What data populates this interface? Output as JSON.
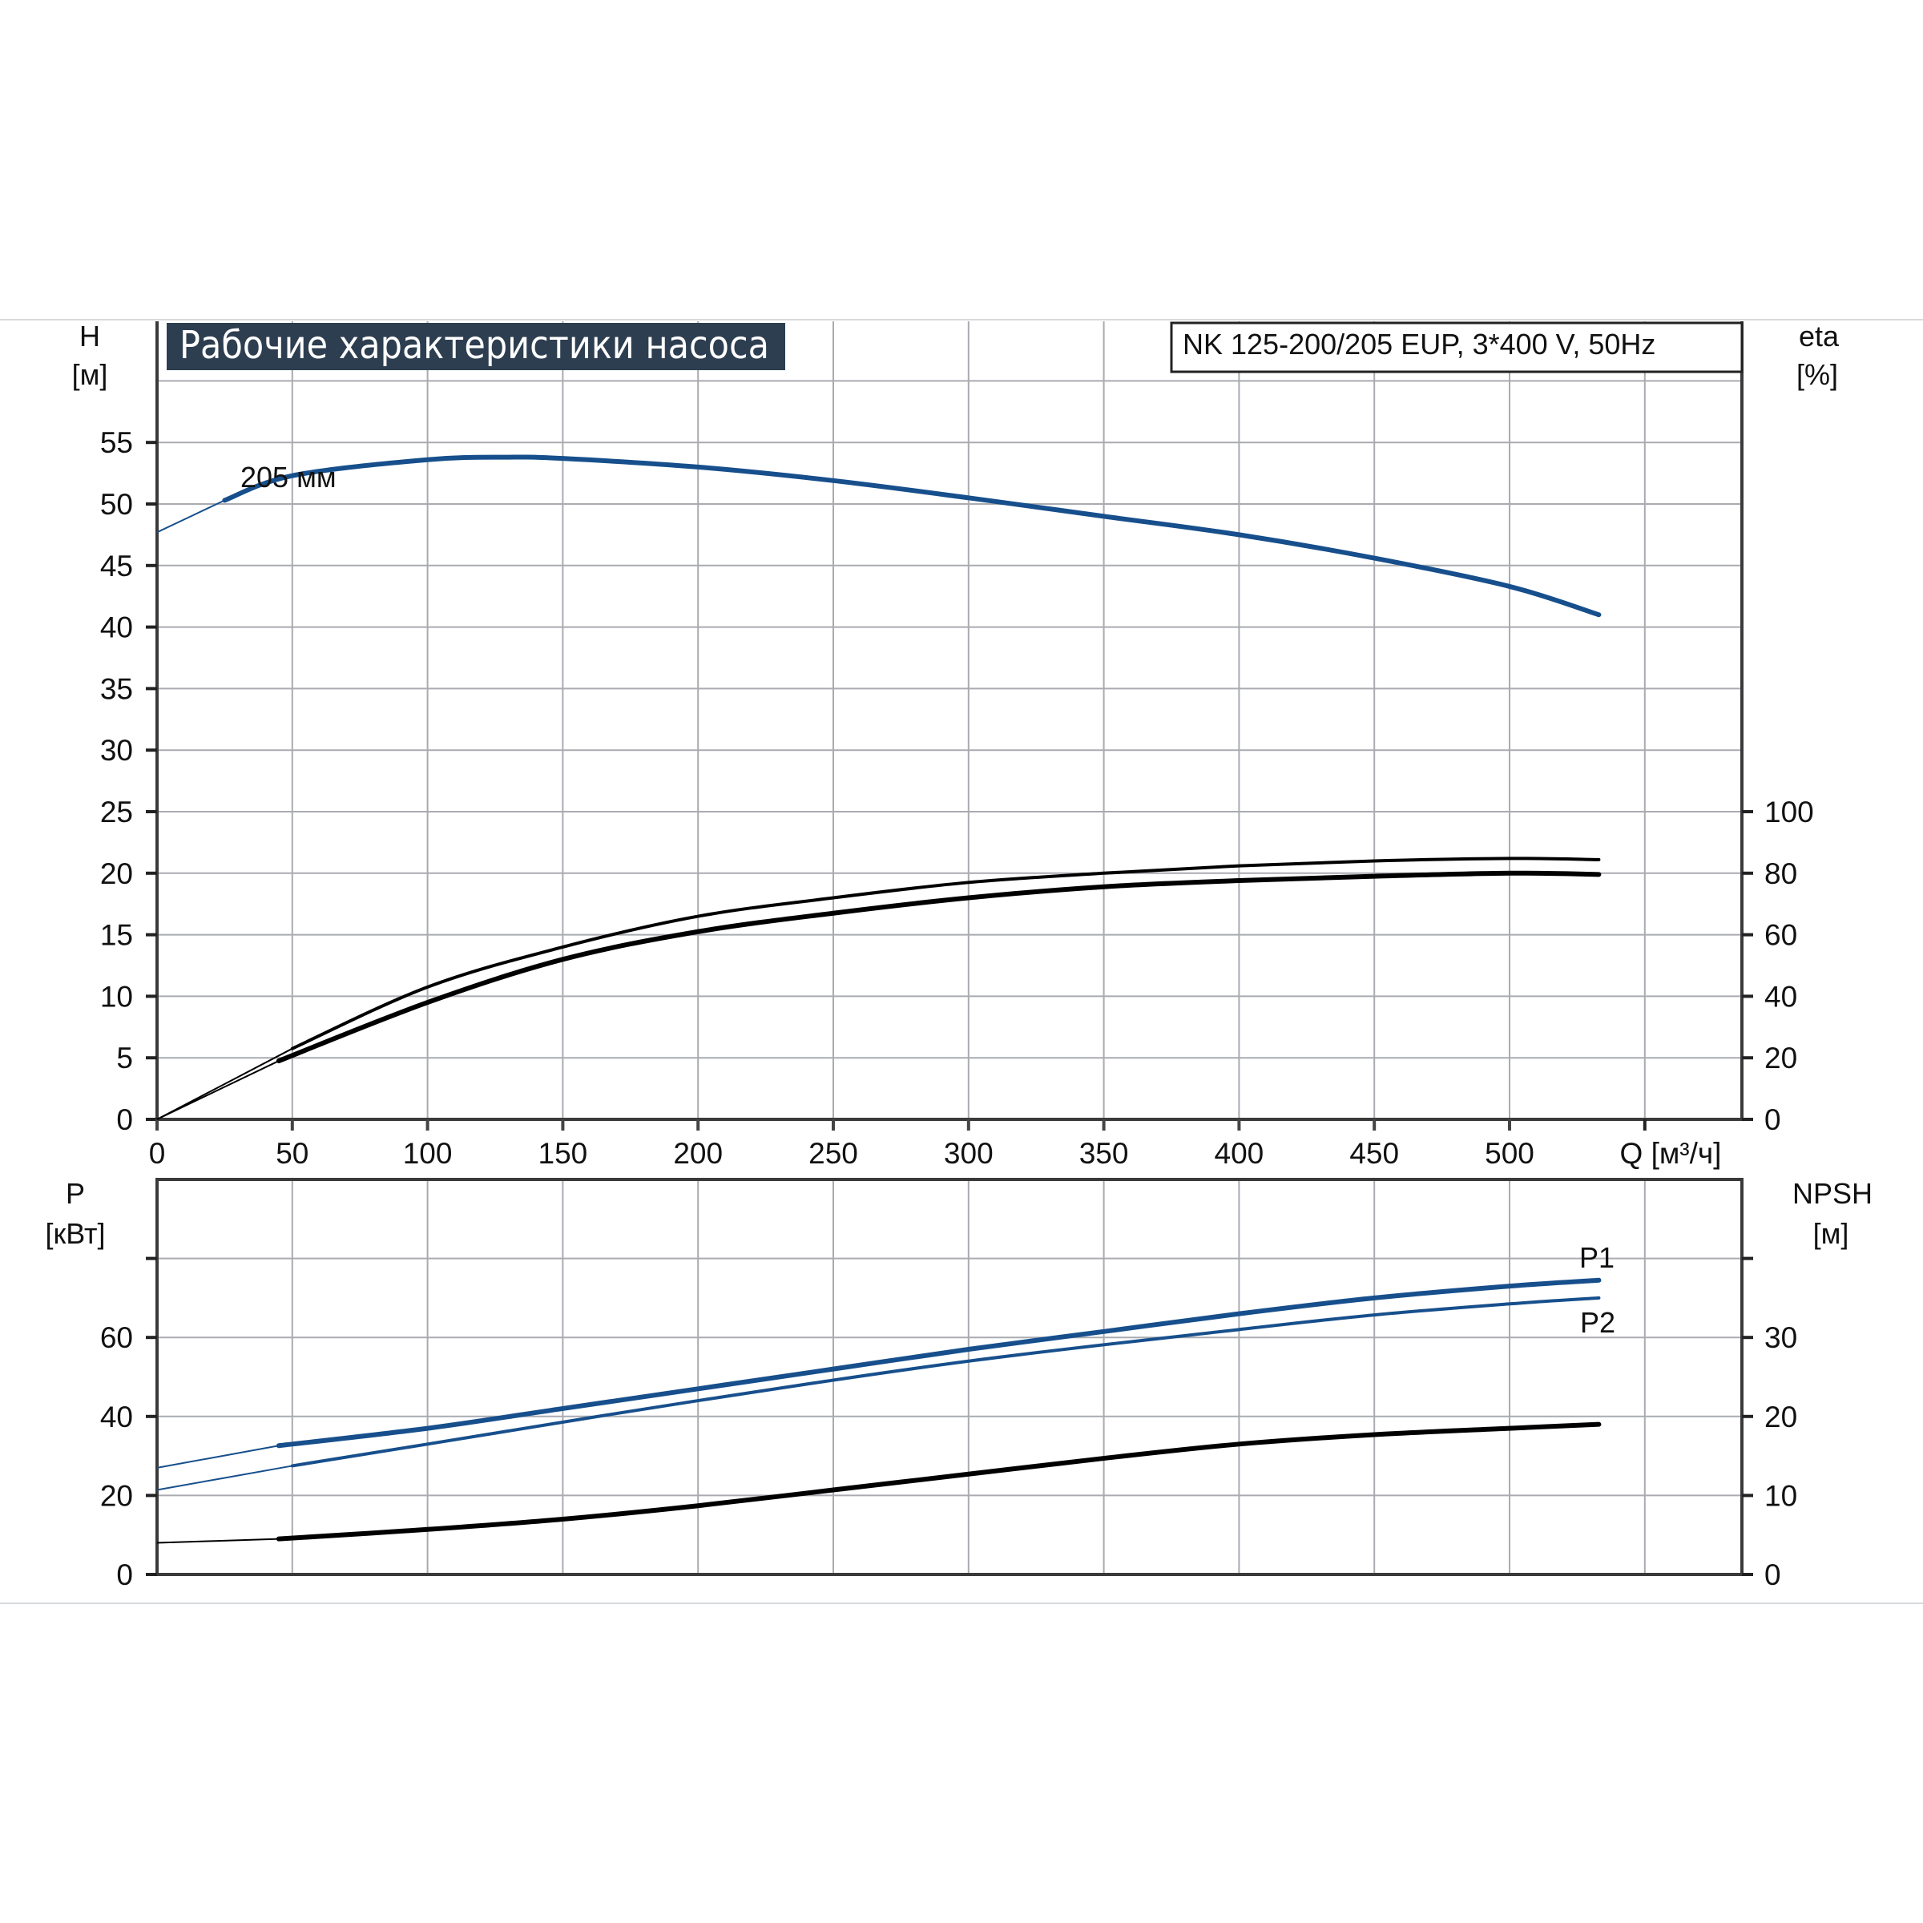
{
  "title": "Рабочие характеристики насоса",
  "model": "NK 125-200/205 EUP, 3*400 V, 50Hz",
  "colors": {
    "blue": "#174f8c",
    "black": "#000000",
    "title_bg": "#2d3e50",
    "grid": "#a9abb0"
  },
  "chart_data": [
    {
      "type": "line",
      "xlabel": "Q [м³/ч]",
      "ylabel": "H",
      "ylabel_unit": "[м]",
      "y2label": "eta",
      "y2label_unit": "[%]",
      "xlim": [
        0,
        585
      ],
      "ylim": [
        0,
        60
      ],
      "y2lim": [
        0,
        100
      ],
      "x_ticks": [
        "0",
        "50",
        "100",
        "150",
        "200",
        "250",
        "300",
        "350",
        "400",
        "450",
        "500"
      ],
      "y_ticks": [
        "0",
        "5",
        "10",
        "15",
        "20",
        "25",
        "30",
        "35",
        "40",
        "45",
        "50",
        "55"
      ],
      "y2_ticks": [
        "0",
        "20",
        "40",
        "60",
        "80",
        "100"
      ],
      "grid": true,
      "curve_label": "205 мм",
      "series": [
        {
          "axis": "H",
          "color": "#174f8c",
          "x": [
            0,
            25,
            50,
            100,
            130,
            150,
            200,
            250,
            300,
            350,
            400,
            450,
            500,
            533
          ],
          "y": [
            47.7,
            50.3,
            52.3,
            53.6,
            53.8,
            53.7,
            53.0,
            51.9,
            50.5,
            49.0,
            47.5,
            45.6,
            43.3,
            41.0
          ]
        },
        {
          "axis": "eta",
          "color": "#000000",
          "x": [
            0,
            50,
            100,
            150,
            200,
            250,
            300,
            350,
            400,
            450,
            500,
            533
          ],
          "y": [
            0,
            23,
            43,
            56,
            66,
            72,
            77,
            80,
            82.4,
            84,
            84.8,
            84.4
          ]
        },
        {
          "axis": "eta",
          "color": "#000000",
          "x": [
            0,
            45,
            100,
            150,
            200,
            250,
            300,
            350,
            400,
            450,
            500,
            533
          ],
          "y": [
            0,
            19,
            38,
            52,
            61,
            67,
            72,
            75.6,
            77.6,
            79,
            80,
            79.6
          ]
        }
      ]
    },
    {
      "type": "line",
      "ylabel": "P",
      "ylabel_unit": "[кВт]",
      "y2label": "NPSH",
      "y2label_unit": "[м]",
      "xlim": [
        0,
        585
      ],
      "ylim": [
        0,
        96
      ],
      "y2lim": [
        0,
        48
      ],
      "y_ticks": [
        "0",
        "20",
        "40",
        "60"
      ],
      "y2_ticks": [
        "0",
        "10",
        "20",
        "30"
      ],
      "grid": true,
      "series": [
        {
          "name": "P1",
          "axis": "P",
          "color": "#174f8c",
          "x": [
            0,
            45,
            100,
            150,
            200,
            250,
            300,
            350,
            400,
            450,
            500,
            533
          ],
          "y": [
            27,
            32.6,
            37,
            42,
            47,
            52,
            57,
            61.5,
            66,
            70,
            73,
            74.5
          ]
        },
        {
          "name": "P2",
          "axis": "P",
          "color": "#174f8c",
          "x": [
            0,
            50,
            100,
            200,
            300,
            400,
            450,
            500,
            533
          ],
          "y": [
            21.4,
            27.5,
            33,
            44,
            54,
            62,
            65.7,
            68.5,
            70
          ]
        },
        {
          "axis": "NPSH",
          "color": "#000000",
          "x": [
            0,
            45,
            100,
            150,
            200,
            250,
            300,
            350,
            400,
            450,
            500,
            533
          ],
          "y": [
            4,
            4.5,
            5.7,
            7,
            8.7,
            10.7,
            12.7,
            14.7,
            16.5,
            17.7,
            18.5,
            19
          ]
        }
      ]
    }
  ]
}
